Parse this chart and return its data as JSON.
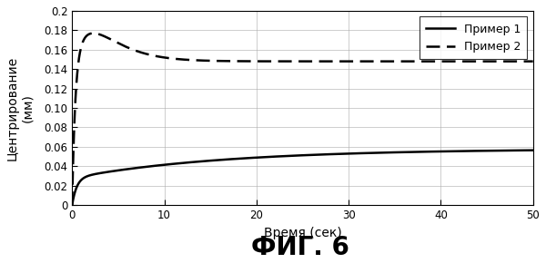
{
  "title": "ФИГ. 6",
  "xlabel": "Время (сек)",
  "ylabel": "Центрирование\n(мм)",
  "xlim": [
    0,
    50
  ],
  "ylim": [
    0,
    0.2
  ],
  "yticks": [
    0,
    0.02,
    0.04,
    0.06,
    0.08,
    0.1,
    0.12,
    0.14,
    0.16,
    0.18,
    0.2
  ],
  "ytick_labels": [
    "0",
    "0.02",
    "0.04",
    "0.06",
    "0.08",
    "0.10",
    "0.12",
    "0.14",
    "0.16",
    "0.18",
    "0.2"
  ],
  "xticks": [
    0,
    10,
    20,
    30,
    40,
    50
  ],
  "legend": [
    "Пример 1",
    "Пример 2"
  ],
  "line1_color": "#000000",
  "line2_color": "#000000",
  "background_color": "#ffffff",
  "grid_color": "#aaaaaa",
  "line1_ss": 0.058,
  "line1_k": 0.12,
  "line2_ss": 0.148,
  "line2_k1": 3.5,
  "line2_peak": 0.175,
  "line2_tpeak": 3.2,
  "line2_decay": 0.18
}
